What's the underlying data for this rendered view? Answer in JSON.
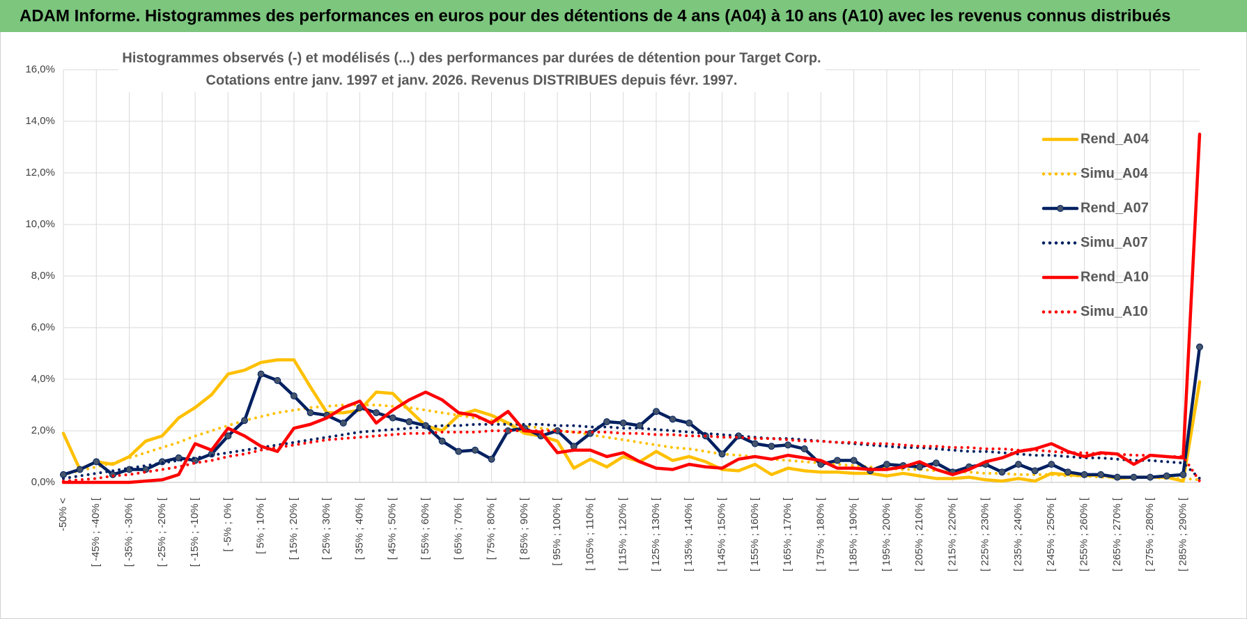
{
  "header": {
    "title": "ADAM Informe. Histogrammes des performances en euros pour des détentions de 4 ans (A04) à 10 ans (A10) avec les revenus connus distribués"
  },
  "chart_data": {
    "type": "line",
    "title": "Histogrammes observés (-) et modélisés (...) des performances par durées de détention pour Target Corp.",
    "subtitle": "Cotations entre janv. 1997 et janv. 2026. Revenus DISTRIBUES depuis févr. 1997.",
    "categories": [
      "-50% <",
      null,
      "[ -45% ; -40% [",
      null,
      "[ -35% ; -30% [",
      null,
      "[ -25% ; -20% [",
      null,
      "[ -15% ; -10% [",
      null,
      "[ -5% ; 0% [",
      null,
      "[ 5% ; 10% [",
      null,
      "[ 15% ; 20% [",
      null,
      "[ 25% ; 30% [",
      null,
      "[ 35% ; 40% [",
      null,
      "[ 45% ; 50% [",
      null,
      "[ 55% ; 60% [",
      null,
      "[ 65% ; 70% [",
      null,
      "[ 75% ; 80% [",
      null,
      "[ 85% ; 90% [",
      null,
      "[ 95% ; 100% [",
      null,
      "[ 105% ; 110% [",
      null,
      "[ 115% ; 120% [",
      null,
      "[ 125% ; 130% [",
      null,
      "[ 135% ; 140% [",
      null,
      "[ 145% ; 150% [",
      null,
      "[ 155% ; 160% [",
      null,
      "[ 165% ; 170% [",
      null,
      "[ 175% ; 180% [",
      null,
      "[ 185% ; 190% [",
      null,
      "[ 195% ; 200% [",
      null,
      "[ 205% ; 210% [",
      null,
      "[ 215% ; 220% [",
      null,
      "[ 225% ; 230% [",
      null,
      "[ 235% ; 240% [",
      null,
      "[ 245% ; 250% [",
      null,
      "[ 255% ; 260% [",
      null,
      "[ 265% ; 270% [",
      null,
      "[ 275% ; 280% [",
      null,
      "[ 285% ; 290% [",
      null
    ],
    "ylim": [
      0,
      16
    ],
    "yticks": [
      {
        "value": 0,
        "label": "0,0%"
      },
      {
        "value": 2,
        "label": "2,0%"
      },
      {
        "value": 4,
        "label": "4,0%"
      },
      {
        "value": 6,
        "label": "6,0%"
      },
      {
        "value": 8,
        "label": "8,0%"
      },
      {
        "value": 10,
        "label": "10,0%"
      },
      {
        "value": 12,
        "label": "12,0%"
      },
      {
        "value": 14,
        "label": "14,0%"
      },
      {
        "value": 16,
        "label": "16,0%"
      }
    ],
    "grid": true,
    "series": [
      {
        "name": "Rend_A04",
        "color": "#ffc000",
        "style": "solid",
        "markers": false,
        "values": [
          1.9,
          0.5,
          0.8,
          0.7,
          1.0,
          1.6,
          1.8,
          2.5,
          2.9,
          3.4,
          4.2,
          4.35,
          4.65,
          4.75,
          4.75,
          3.7,
          2.7,
          2.7,
          2.8,
          3.5,
          3.45,
          2.8,
          2.2,
          2.0,
          2.6,
          2.8,
          2.6,
          2.3,
          1.9,
          1.8,
          1.6,
          0.55,
          0.9,
          0.6,
          1.0,
          0.8,
          1.2,
          0.85,
          1.0,
          0.8,
          0.5,
          0.45,
          0.7,
          0.3,
          0.55,
          0.45,
          0.4,
          0.4,
          0.35,
          0.35,
          0.25,
          0.35,
          0.25,
          0.15,
          0.15,
          0.2,
          0.1,
          0.05,
          0.15,
          0.05,
          0.35,
          0.3,
          0.25,
          0.3,
          0.15,
          0.2,
          0.2,
          0.2,
          0.05,
          3.9
        ]
      },
      {
        "name": "Simu_A04",
        "color": "#ffc000",
        "style": "dotted",
        "markers": false,
        "values": [
          0.3,
          0.45,
          0.6,
          0.75,
          0.95,
          1.15,
          1.35,
          1.55,
          1.8,
          2.0,
          2.2,
          2.4,
          2.55,
          2.7,
          2.8,
          2.9,
          2.95,
          3.0,
          3.0,
          3.0,
          2.95,
          2.9,
          2.8,
          2.7,
          2.6,
          2.5,
          2.4,
          2.3,
          2.2,
          2.1,
          2.0,
          1.95,
          1.85,
          1.75,
          1.65,
          1.55,
          1.45,
          1.35,
          1.3,
          1.2,
          1.1,
          1.05,
          1.0,
          0.9,
          0.85,
          0.8,
          0.75,
          0.7,
          0.65,
          0.6,
          0.55,
          0.5,
          0.5,
          0.45,
          0.4,
          0.4,
          0.35,
          0.35,
          0.3,
          0.3,
          0.3,
          0.25,
          0.25,
          0.2,
          0.2,
          0.2,
          0.2,
          0.15,
          0.15,
          0.1
        ]
      },
      {
        "name": "Rend_A07",
        "color": "#002060",
        "style": "solid",
        "markers": true,
        "values": [
          0.3,
          0.5,
          0.8,
          0.3,
          0.5,
          0.5,
          0.8,
          0.95,
          0.85,
          1.1,
          1.8,
          2.4,
          4.2,
          3.95,
          3.35,
          2.7,
          2.6,
          2.3,
          2.9,
          2.7,
          2.5,
          2.35,
          2.2,
          1.6,
          1.2,
          1.25,
          0.9,
          2.0,
          2.1,
          1.8,
          2.0,
          1.4,
          1.9,
          2.35,
          2.3,
          2.2,
          2.75,
          2.45,
          2.3,
          1.8,
          1.1,
          1.8,
          1.5,
          1.4,
          1.45,
          1.3,
          0.7,
          0.85,
          0.85,
          0.45,
          0.7,
          0.65,
          0.6,
          0.75,
          0.4,
          0.6,
          0.7,
          0.4,
          0.7,
          0.45,
          0.7,
          0.4,
          0.3,
          0.3,
          0.2,
          0.2,
          0.2,
          0.25,
          0.3,
          5.25
        ]
      },
      {
        "name": "Simu_A07",
        "color": "#002060",
        "style": "dotted",
        "markers": false,
        "values": [
          0.15,
          0.25,
          0.35,
          0.45,
          0.55,
          0.65,
          0.75,
          0.85,
          0.95,
          1.05,
          1.15,
          1.25,
          1.35,
          1.45,
          1.55,
          1.65,
          1.75,
          1.85,
          1.95,
          2.0,
          2.05,
          2.1,
          2.15,
          2.2,
          2.2,
          2.25,
          2.25,
          2.25,
          2.25,
          2.25,
          2.2,
          2.2,
          2.15,
          2.15,
          2.1,
          2.1,
          2.05,
          2.0,
          1.95,
          1.9,
          1.85,
          1.8,
          1.75,
          1.7,
          1.7,
          1.65,
          1.6,
          1.55,
          1.5,
          1.45,
          1.4,
          1.35,
          1.35,
          1.3,
          1.25,
          1.2,
          1.2,
          1.15,
          1.1,
          1.05,
          1.05,
          1.0,
          0.95,
          0.95,
          0.9,
          0.85,
          0.85,
          0.8,
          0.75,
          0.15
        ]
      },
      {
        "name": "Rend_A10",
        "color": "#ff0000",
        "style": "solid",
        "markers": false,
        "values": [
          0.0,
          0.0,
          0.0,
          0.0,
          0.0,
          0.05,
          0.1,
          0.3,
          1.5,
          1.25,
          2.1,
          1.8,
          1.4,
          1.2,
          2.1,
          2.25,
          2.5,
          2.9,
          3.15,
          2.3,
          2.8,
          3.2,
          3.5,
          3.2,
          2.7,
          2.6,
          2.3,
          2.75,
          2.0,
          1.95,
          1.15,
          1.25,
          1.25,
          1.0,
          1.15,
          0.8,
          0.55,
          0.5,
          0.7,
          0.6,
          0.55,
          0.9,
          1.0,
          0.9,
          1.05,
          0.95,
          0.85,
          0.55,
          0.55,
          0.5,
          0.5,
          0.6,
          0.8,
          0.5,
          0.3,
          0.5,
          0.8,
          0.95,
          1.2,
          1.3,
          1.5,
          1.2,
          1.0,
          1.15,
          1.1,
          0.7,
          1.05,
          1.0,
          0.95,
          13.5
        ]
      },
      {
        "name": "Simu_A10",
        "color": "#ff0000",
        "style": "dotted",
        "markers": false,
        "values": [
          0.05,
          0.1,
          0.15,
          0.25,
          0.3,
          0.4,
          0.5,
          0.6,
          0.75,
          0.85,
          1.0,
          1.1,
          1.25,
          1.35,
          1.45,
          1.55,
          1.65,
          1.7,
          1.75,
          1.8,
          1.85,
          1.9,
          1.9,
          1.95,
          1.95,
          1.95,
          2.0,
          2.0,
          2.0,
          2.0,
          2.0,
          1.95,
          1.95,
          1.95,
          1.9,
          1.9,
          1.85,
          1.85,
          1.8,
          1.8,
          1.75,
          1.75,
          1.7,
          1.7,
          1.65,
          1.6,
          1.6,
          1.55,
          1.55,
          1.5,
          1.5,
          1.45,
          1.4,
          1.4,
          1.35,
          1.35,
          1.3,
          1.3,
          1.25,
          1.25,
          1.2,
          1.15,
          1.15,
          1.1,
          1.1,
          1.05,
          1.05,
          1.0,
          1.0,
          0.05
        ]
      }
    ]
  }
}
